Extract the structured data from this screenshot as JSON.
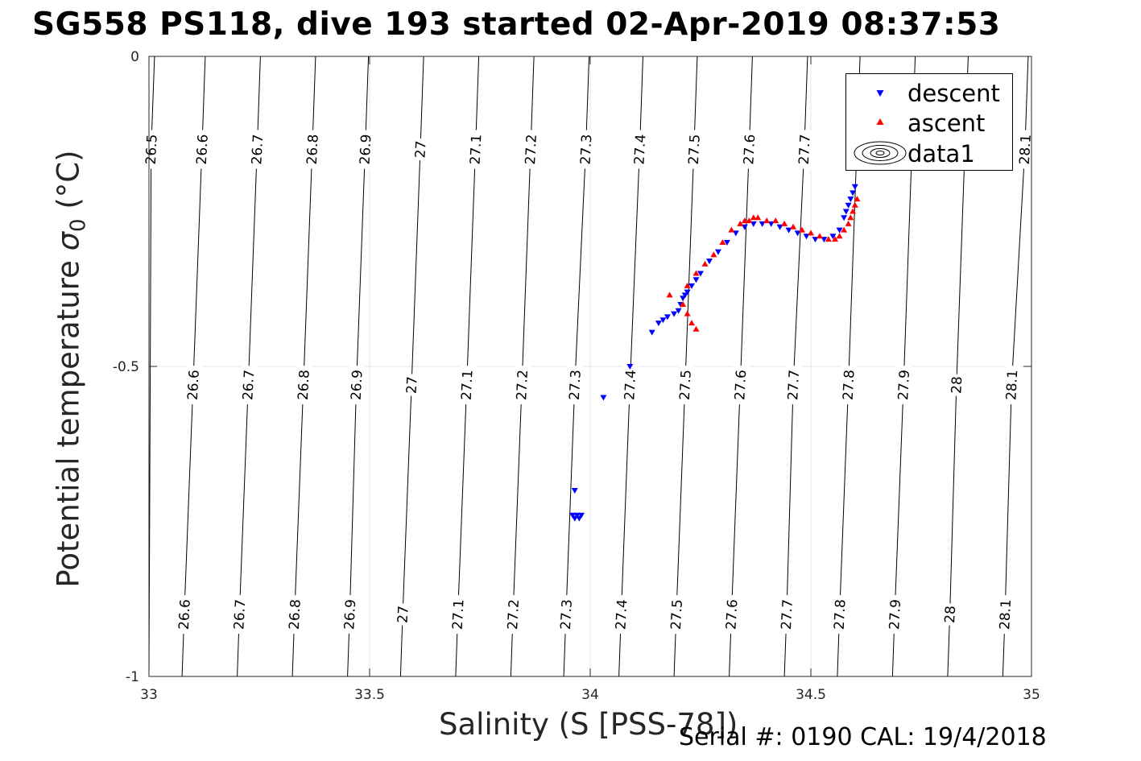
{
  "title": "SG558 PS118, dive 193 started 02-Apr-2019 08:37:53",
  "xlabel": "Salinity (S [PSS-78])",
  "ylabel_main": "Potential temperature ",
  "ylabel_sigma": "σ",
  "ylabel_sub": "0",
  "ylabel_unit": " (°C)",
  "footer": "Serial #: 0190  CAL: 19/4/2018",
  "legend": {
    "items": [
      {
        "label": "descent",
        "color": "#0000ff",
        "marker": "triangle-down"
      },
      {
        "label": "ascent",
        "color": "#ff0000",
        "marker": "triangle-up"
      },
      {
        "label": "data1",
        "color": "#000000",
        "marker": "contour-ellipses"
      }
    ]
  },
  "chart_data": {
    "type": "scatter",
    "xlim": [
      33,
      35
    ],
    "ylim": [
      -1,
      0
    ],
    "xticks": [
      "33",
      "33.5",
      "34",
      "34.5",
      "35"
    ],
    "yticks": [
      "0",
      "-0.5",
      "-1"
    ],
    "grid": true,
    "legend_position": "top-right",
    "contours": {
      "kind": "sigma0 density isopycnals",
      "levels": [
        "26.5",
        "26.6",
        "26.7",
        "26.8",
        "26.9",
        "27",
        "27.1",
        "27.2",
        "27.3",
        "27.4",
        "27.5",
        "27.6",
        "27.7",
        "27.8",
        "27.9",
        "28",
        "28.1"
      ],
      "label_rows": [
        {
          "y": -0.15,
          "labels": [
            {
              "label": "26.5",
              "x": 33.005
            },
            {
              "label": "26.6",
              "x": 33.12
            },
            {
              "label": "26.7",
              "x": 33.245
            },
            {
              "label": "26.8",
              "x": 33.37
            },
            {
              "label": "26.9",
              "x": 33.49
            },
            {
              "label": "27",
              "x": 33.615
            },
            {
              "label": "27.1",
              "x": 33.74
            },
            {
              "label": "27.2",
              "x": 33.865
            },
            {
              "label": "27.3",
              "x": 33.99
            },
            {
              "label": "27.4",
              "x": 34.112
            },
            {
              "label": "27.5",
              "x": 34.235
            },
            {
              "label": "27.6",
              "x": 34.36
            },
            {
              "label": "27.7",
              "x": 34.485
            },
            {
              "label": "28.1",
              "x": 34.985
            }
          ]
        },
        {
          "y": -0.53,
          "labels": [
            {
              "label": "26.6",
              "x": 33.1
            },
            {
              "label": "26.7",
              "x": 33.225
            },
            {
              "label": "26.8",
              "x": 33.35
            },
            {
              "label": "26.9",
              "x": 33.47
            },
            {
              "label": "27",
              "x": 33.595
            },
            {
              "label": "27.1",
              "x": 33.72
            },
            {
              "label": "27.2",
              "x": 33.845
            },
            {
              "label": "27.3",
              "x": 33.965
            },
            {
              "label": "27.4",
              "x": 34.09
            },
            {
              "label": "27.5",
              "x": 34.215
            },
            {
              "label": "27.6",
              "x": 34.34
            },
            {
              "label": "27.7",
              "x": 34.46
            },
            {
              "label": "27.8",
              "x": 34.585
            },
            {
              "label": "27.9",
              "x": 34.71
            },
            {
              "label": "28",
              "x": 34.83
            },
            {
              "label": "28.1",
              "x": 34.955
            }
          ]
        },
        {
          "y": -0.9,
          "labels": [
            {
              "label": "26.6",
              "x": 33.08
            },
            {
              "label": "26.7",
              "x": 33.205
            },
            {
              "label": "26.8",
              "x": 33.33
            },
            {
              "label": "26.9",
              "x": 33.455
            },
            {
              "label": "27",
              "x": 33.575
            },
            {
              "label": "27.1",
              "x": 33.7
            },
            {
              "label": "27.2",
              "x": 33.825
            },
            {
              "label": "27.3",
              "x": 33.945
            },
            {
              "label": "27.4",
              "x": 34.07
            },
            {
              "label": "27.5",
              "x": 34.195
            },
            {
              "label": "27.6",
              "x": 34.32
            },
            {
              "label": "27.7",
              "x": 34.445
            },
            {
              "label": "27.8",
              "x": 34.565
            },
            {
              "label": "27.9",
              "x": 34.69
            },
            {
              "label": "28",
              "x": 34.815
            },
            {
              "label": "28.1",
              "x": 34.94
            }
          ]
        }
      ]
    },
    "series": [
      {
        "name": "descent",
        "color": "#0000ff",
        "marker": "triangle-down",
        "x": [
          33.96,
          33.965,
          33.97,
          33.975,
          33.98,
          33.965,
          34.03,
          34.09,
          34.14,
          34.155,
          34.165,
          34.175,
          34.19,
          34.2,
          34.205,
          34.21,
          34.215,
          34.22,
          34.23,
          34.24,
          34.25,
          34.27,
          34.29,
          34.31,
          34.33,
          34.35,
          34.37,
          34.39,
          34.41,
          34.43,
          34.45,
          34.47,
          34.49,
          34.51,
          34.53,
          34.55,
          34.565,
          34.575,
          34.58,
          34.585,
          34.59,
          34.595,
          34.6
        ],
        "y": [
          -0.74,
          -0.745,
          -0.74,
          -0.745,
          -0.74,
          -0.7,
          -0.55,
          -0.5,
          -0.445,
          -0.43,
          -0.425,
          -0.42,
          -0.415,
          -0.41,
          -0.4,
          -0.39,
          -0.385,
          -0.38,
          -0.37,
          -0.36,
          -0.35,
          -0.33,
          -0.315,
          -0.3,
          -0.285,
          -0.275,
          -0.27,
          -0.27,
          -0.27,
          -0.275,
          -0.28,
          -0.285,
          -0.29,
          -0.295,
          -0.295,
          -0.29,
          -0.28,
          -0.26,
          -0.25,
          -0.24,
          -0.23,
          -0.22,
          -0.21
        ]
      },
      {
        "name": "ascent",
        "color": "#ff0000",
        "marker": "triangle-up",
        "x": [
          34.18,
          34.21,
          34.22,
          34.23,
          34.24,
          34.22,
          34.24,
          34.26,
          34.28,
          34.3,
          34.32,
          34.34,
          34.35,
          34.36,
          34.37,
          34.38,
          34.4,
          34.42,
          34.44,
          34.46,
          34.48,
          34.5,
          34.52,
          34.54,
          34.555,
          34.565,
          34.575,
          34.585,
          34.59,
          34.595,
          34.6,
          34.605
        ],
        "y": [
          -0.385,
          -0.4,
          -0.415,
          -0.43,
          -0.44,
          -0.37,
          -0.35,
          -0.335,
          -0.32,
          -0.3,
          -0.28,
          -0.27,
          -0.265,
          -0.265,
          -0.26,
          -0.26,
          -0.265,
          -0.265,
          -0.27,
          -0.275,
          -0.28,
          -0.285,
          -0.29,
          -0.295,
          -0.295,
          -0.29,
          -0.28,
          -0.27,
          -0.26,
          -0.25,
          -0.24,
          -0.23
        ]
      }
    ]
  }
}
